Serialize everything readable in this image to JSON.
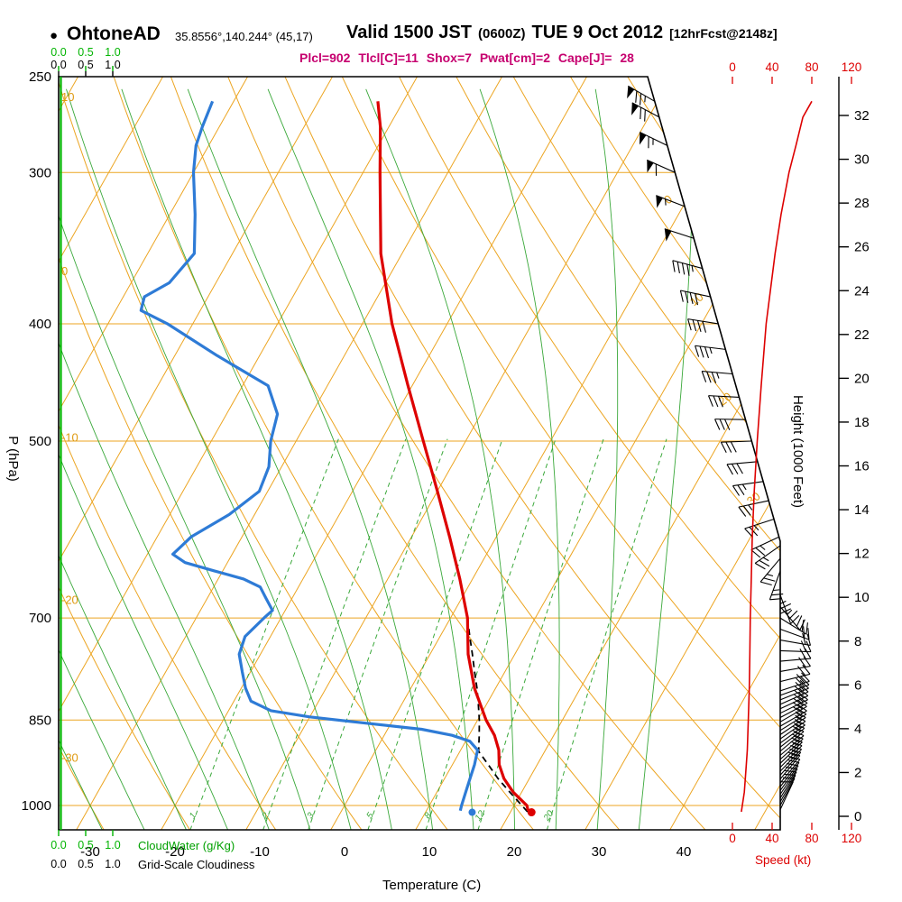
{
  "header": {
    "bullet": "●",
    "station": "OhtoneAD",
    "coords": "35.8556°,140.244° (45,17)",
    "valid_main": "Valid 1500 JST",
    "valid_zulu": "(0600Z)",
    "valid_date": "TUE 9 Oct 2012",
    "forecast_tag": "[12hrFcst@2148z]",
    "indices": "Plcl=902 Tlcl[C]=11 Shox=7 Pwat[cm]=2 Cape[J]= 28"
  },
  "axes": {
    "pressure_label": "P (hPa)",
    "pressure_ticks": [
      250,
      300,
      400,
      500,
      700,
      850,
      1000
    ],
    "temp_label": "Temperature (C)",
    "temp_ticks": [
      -30,
      -20,
      -10,
      0,
      10,
      20,
      30,
      40
    ],
    "height_label": "Height (1000 Feet)",
    "height_ticks": [
      0,
      2,
      4,
      6,
      8,
      10,
      12,
      14,
      16,
      18,
      20,
      22,
      24,
      26,
      28,
      30,
      32
    ],
    "speed_label": "Speed (kt)",
    "speed_ticks": [
      0,
      40,
      80,
      120
    ],
    "cloudwater_scale": [
      "0.0",
      "0.5",
      "1.0"
    ],
    "cloudwater_label": "CloudWater (g/Kg)",
    "cloudiness_label": "Grid-Scale Cloudiness"
  },
  "colors": {
    "grid_orange": "#eca522",
    "grid_green": "#3aa83a",
    "bright_green": "#00b400",
    "temp_red": "#dd0000",
    "dew_blue": "#2e7bd6",
    "speed_red": "#dd0000",
    "magenta": "#c6006f",
    "black": "#000000"
  },
  "chart_data": {
    "type": "skewt_log_p_sounding",
    "pressure_range_hpa": [
      250,
      1048
    ],
    "temp_axis_range_c": [
      -30,
      40
    ],
    "isobar_lines": [
      300,
      400,
      500,
      700,
      850,
      1000
    ],
    "isotherm_step_c": 10,
    "mixing_ratio_lines_gkg": [
      1,
      2,
      3,
      5,
      8,
      12,
      20
    ],
    "dry_adiabat_labels_c": [
      10,
      0,
      -10,
      -20,
      -30
    ],
    "isotherm_border_labels_c": [
      0,
      10,
      20,
      30
    ],
    "temperature_profile": [
      [
        1010,
        22
      ],
      [
        1000,
        21.5
      ],
      [
        975,
        19
      ],
      [
        950,
        17
      ],
      [
        925,
        15.5
      ],
      [
        900,
        14.5
      ],
      [
        875,
        13
      ],
      [
        850,
        11
      ],
      [
        800,
        7.5
      ],
      [
        750,
        4.5
      ],
      [
        700,
        2
      ],
      [
        650,
        -1.5
      ],
      [
        600,
        -5.5
      ],
      [
        550,
        -10
      ],
      [
        500,
        -15
      ],
      [
        450,
        -20.5
      ],
      [
        400,
        -26.5
      ],
      [
        350,
        -32.5
      ],
      [
        300,
        -38
      ],
      [
        275,
        -41
      ],
      [
        262,
        -43
      ]
    ],
    "dewpoint_profile": [
      [
        1010,
        14
      ],
      [
        1000,
        13.8
      ],
      [
        975,
        13.4
      ],
      [
        950,
        13
      ],
      [
        925,
        12.6
      ],
      [
        900,
        12
      ],
      [
        885,
        10.5
      ],
      [
        875,
        8
      ],
      [
        865,
        4
      ],
      [
        855,
        -3
      ],
      [
        845,
        -10
      ],
      [
        835,
        -15
      ],
      [
        820,
        -18
      ],
      [
        800,
        -19.5
      ],
      [
        775,
        -21
      ],
      [
        750,
        -22.5
      ],
      [
        725,
        -23
      ],
      [
        700,
        -22
      ],
      [
        690,
        -21.5
      ],
      [
        675,
        -23
      ],
      [
        660,
        -24.5
      ],
      [
        650,
        -27
      ],
      [
        640,
        -31
      ],
      [
        630,
        -35
      ],
      [
        620,
        -37
      ],
      [
        610,
        -36.5
      ],
      [
        600,
        -36
      ],
      [
        575,
        -33
      ],
      [
        550,
        -31
      ],
      [
        525,
        -31.5
      ],
      [
        500,
        -33
      ],
      [
        475,
        -34
      ],
      [
        450,
        -37
      ],
      [
        425,
        -45
      ],
      [
        400,
        -53
      ],
      [
        390,
        -57
      ],
      [
        380,
        -57.5
      ],
      [
        370,
        -55.5
      ],
      [
        350,
        -54.5
      ],
      [
        325,
        -57
      ],
      [
        300,
        -60
      ],
      [
        285,
        -61.5
      ],
      [
        275,
        -62
      ],
      [
        262,
        -62.5
      ]
    ],
    "parcel_profile": [
      [
        1012,
        22
      ],
      [
        975,
        18.6
      ],
      [
        950,
        16.3
      ],
      [
        925,
        14.2
      ],
      [
        902,
        12.2
      ],
      [
        875,
        11.2
      ],
      [
        850,
        10.2
      ],
      [
        820,
        8.8
      ],
      [
        800,
        7.8
      ],
      [
        775,
        6.4
      ],
      [
        750,
        5
      ],
      [
        725,
        3.5
      ],
      [
        700,
        2
      ]
    ],
    "surface_temp_dot": {
      "p": 1013,
      "t": 22.5
    },
    "surface_dewpoint_dot": {
      "p": 1013,
      "t": 15.5
    },
    "wind_profile": [
      [
        1008,
        25,
        8
      ],
      [
        1000,
        28,
        9
      ],
      [
        993,
        30,
        10
      ],
      [
        986,
        32,
        10
      ],
      [
        979,
        34,
        11
      ],
      [
        972,
        36,
        11
      ],
      [
        965,
        38,
        12
      ],
      [
        958,
        40,
        12
      ],
      [
        951,
        40,
        13
      ],
      [
        944,
        42,
        13
      ],
      [
        937,
        44,
        14
      ],
      [
        930,
        45,
        14
      ],
      [
        923,
        46,
        15
      ],
      [
        916,
        48,
        15
      ],
      [
        909,
        50,
        15
      ],
      [
        902,
        50,
        16
      ],
      [
        895,
        52,
        16
      ],
      [
        888,
        54,
        16
      ],
      [
        881,
        55,
        17
      ],
      [
        874,
        56,
        17
      ],
      [
        867,
        58,
        17
      ],
      [
        860,
        60,
        18
      ],
      [
        853,
        60,
        18
      ],
      [
        846,
        62,
        18
      ],
      [
        839,
        64,
        18
      ],
      [
        832,
        65,
        19
      ],
      [
        825,
        66,
        19
      ],
      [
        818,
        68,
        19
      ],
      [
        811,
        70,
        19
      ],
      [
        804,
        72,
        20
      ],
      [
        790,
        76,
        20
      ],
      [
        775,
        80,
        20
      ],
      [
        760,
        85,
        21
      ],
      [
        745,
        92,
        21
      ],
      [
        730,
        100,
        21
      ],
      [
        715,
        110,
        22
      ],
      [
        700,
        122,
        22
      ],
      [
        685,
        140,
        22
      ],
      [
        670,
        160,
        23
      ],
      [
        655,
        180,
        23
      ],
      [
        640,
        200,
        23
      ],
      [
        625,
        220,
        24
      ],
      [
        610,
        235,
        24
      ],
      [
        600,
        245,
        24
      ],
      [
        580,
        252,
        25
      ],
      [
        560,
        258,
        26
      ],
      [
        540,
        262,
        27
      ],
      [
        520,
        265,
        28
      ],
      [
        500,
        268,
        29
      ],
      [
        480,
        271,
        30
      ],
      [
        460,
        273,
        32
      ],
      [
        440,
        275,
        34
      ],
      [
        420,
        277,
        36
      ],
      [
        400,
        279,
        38
      ],
      [
        380,
        282,
        42
      ],
      [
        360,
        285,
        46
      ],
      [
        340,
        288,
        51
      ],
      [
        320,
        291,
        57
      ],
      [
        300,
        294,
        62
      ],
      [
        285,
        296,
        67
      ],
      [
        270,
        298,
        72
      ],
      [
        262,
        300,
        76
      ]
    ],
    "wind_speed_curve": [
      [
        1012,
        9
      ],
      [
        975,
        12
      ],
      [
        950,
        13
      ],
      [
        925,
        14
      ],
      [
        900,
        15
      ],
      [
        850,
        16
      ],
      [
        800,
        17
      ],
      [
        750,
        17.5
      ],
      [
        700,
        18
      ],
      [
        650,
        19
      ],
      [
        600,
        20
      ],
      [
        550,
        22
      ],
      [
        500,
        25
      ],
      [
        450,
        29
      ],
      [
        400,
        34
      ],
      [
        350,
        43
      ],
      [
        325,
        49
      ],
      [
        300,
        57
      ],
      [
        285,
        64
      ],
      [
        270,
        71
      ],
      [
        262,
        80
      ]
    ]
  }
}
